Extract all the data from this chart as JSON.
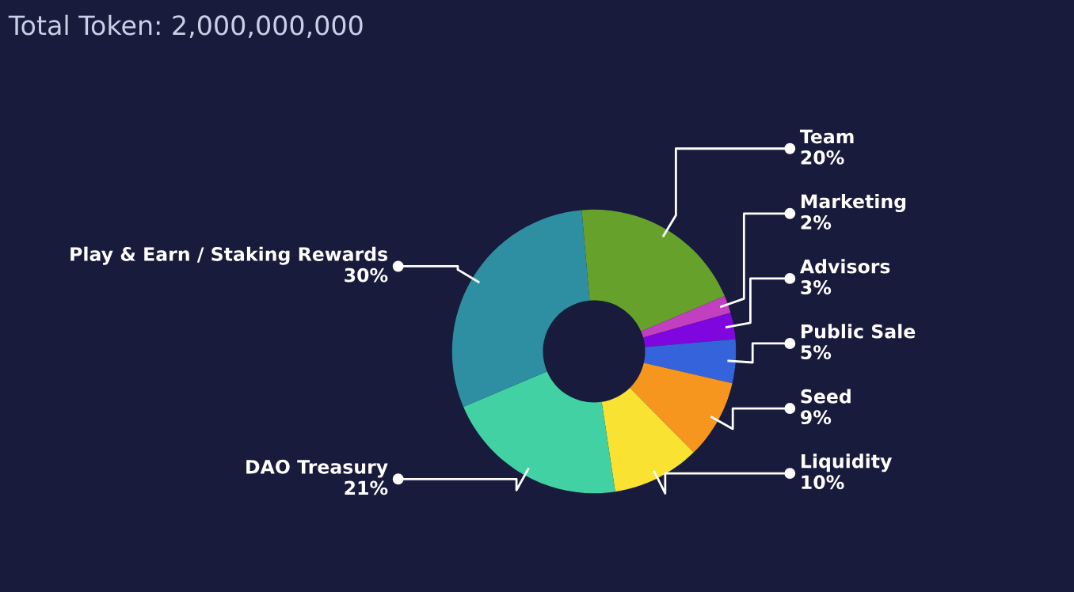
{
  "chart_data": {
    "type": "donut",
    "title": "Total Token: 2,000,000,000",
    "categories": [
      "Team",
      "Marketing",
      "Advisors",
      "Public Sale",
      "Seed",
      "Liquidity",
      "DAO Treasury",
      "Play & Earn / Staking Rewards"
    ],
    "values": [
      20,
      2,
      3,
      5,
      9,
      10,
      21,
      30
    ],
    "value_labels": [
      "20%",
      "2%",
      "3%",
      "5%",
      "9%",
      "10%",
      "21%",
      "30%"
    ],
    "colors": [
      "#66a22b",
      "#c23fbf",
      "#7f06de",
      "#3463dc",
      "#f7961f",
      "#f9e231",
      "#41d1a3",
      "#2f8fa2"
    ],
    "legend": false
  }
}
